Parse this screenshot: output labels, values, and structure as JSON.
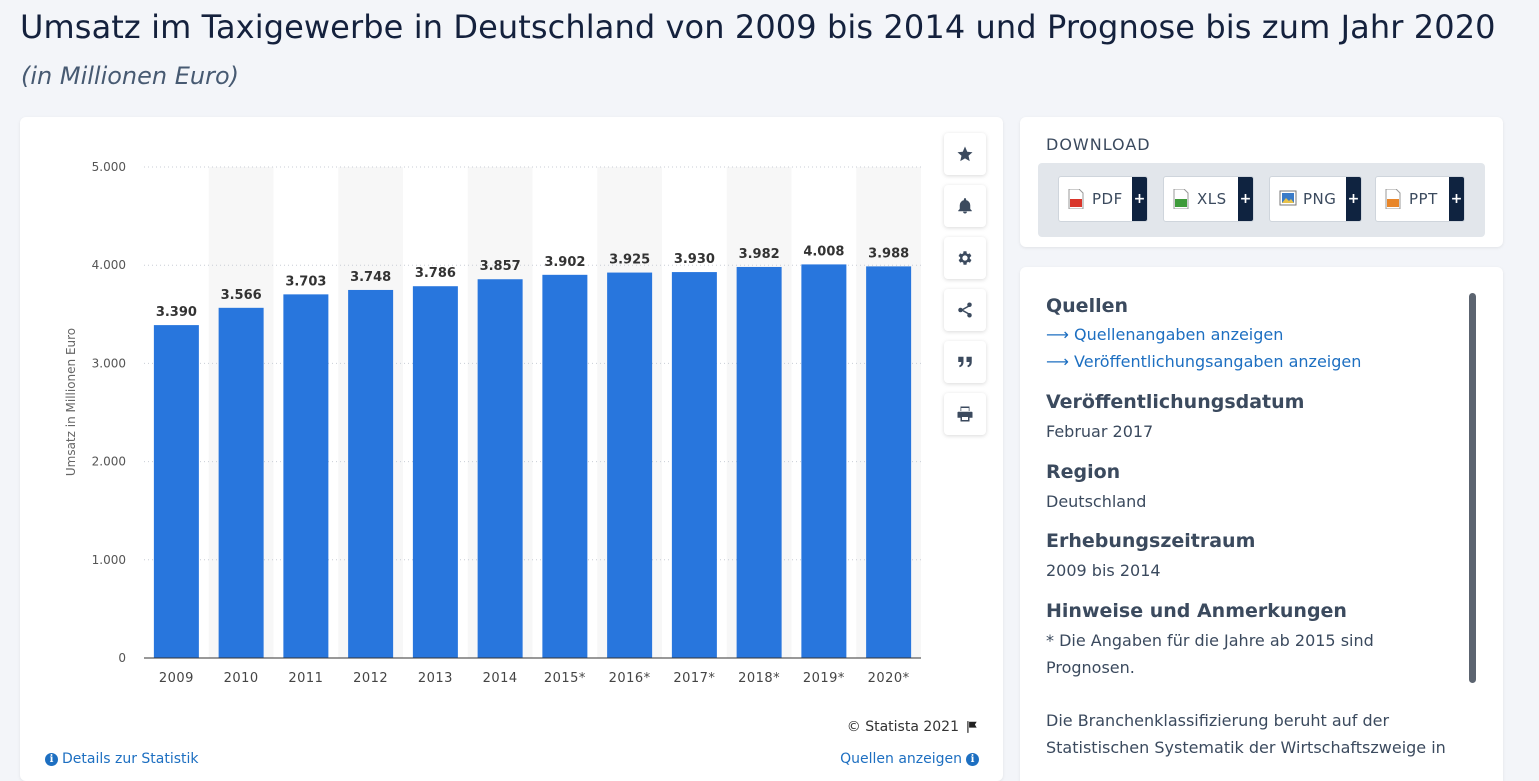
{
  "header": {
    "title": "Umsatz im Taxigewerbe in Deutschland von 2009 bis 2014 und Prognose bis zum Jahr 2020",
    "subtitle": "(in Millionen Euro)"
  },
  "chart_data": {
    "type": "bar",
    "categories": [
      "2009",
      "2010",
      "2011",
      "2012",
      "2013",
      "2014",
      "2015*",
      "2016*",
      "2017*",
      "2018*",
      "2019*",
      "2020*"
    ],
    "values": [
      3390,
      3566,
      3703,
      3748,
      3786,
      3857,
      3902,
      3925,
      3930,
      3982,
      4008,
      3988
    ],
    "value_labels": [
      "3.390",
      "3.566",
      "3.703",
      "3.748",
      "3.786",
      "3.857",
      "3.902",
      "3.925",
      "3.930",
      "3.982",
      "4.008",
      "3.988"
    ],
    "ylabel": "Umsatz in Millionen Euro",
    "ylim": [
      0,
      5000
    ],
    "yticks": [
      0,
      1000,
      2000,
      3000,
      4000,
      5000
    ],
    "ytick_labels": [
      "0",
      "1.000",
      "2.000",
      "3.000",
      "4.000",
      "5.000"
    ],
    "grid": true,
    "bar_color": "#2876dd"
  },
  "chart_card": {
    "copyright": "© Statista 2021",
    "details_link": "Details zur Statistik",
    "sources_link": "Quellen anzeigen"
  },
  "toolbar": {
    "icons": [
      "star-icon",
      "bell-icon",
      "gear-icon",
      "share-icon",
      "quote-icon",
      "print-icon"
    ]
  },
  "download": {
    "title": "DOWNLOAD",
    "buttons": [
      {
        "label": "PDF",
        "plus": "+",
        "color": "#d9362b"
      },
      {
        "label": "XLS",
        "plus": "+",
        "color": "#3e9b3a"
      },
      {
        "label": "PNG",
        "plus": "+",
        "color": "#3a7bc8"
      },
      {
        "label": "PPT",
        "plus": "+",
        "color": "#e8862a"
      }
    ]
  },
  "info": {
    "sources_heading": "Quellen",
    "sources_link": "Quellenangaben anzeigen",
    "publication_link": "Veröffentlichungsangaben anzeigen",
    "link_arrow": "⟶",
    "date_heading": "Veröffentlichungsdatum",
    "date_value": "Februar 2017",
    "region_heading": "Region",
    "region_value": "Deutschland",
    "period_heading": "Erhebungszeitraum",
    "period_value": "2009 bis 2014",
    "notes_heading": "Hinweise und Anmerkungen",
    "notes_text": "* Die Angaben für die Jahre ab 2015 sind Prognosen.",
    "notes_text2": "Die Branchenklassifizierung beruht auf der Statistischen Systematik der Wirtschaftszweige in"
  }
}
